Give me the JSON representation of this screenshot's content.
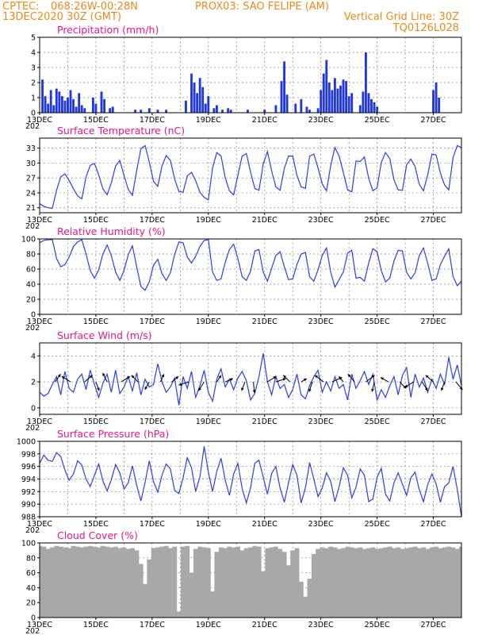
{
  "header": {
    "line1_left": "CPTEC:",
    "coords": "068:26W-00:28N",
    "station": "PROX03: SAO FELIPE (AM)",
    "date": "13DEC2020 30Z (GMT)",
    "grid_note": "Vertical Grid Line: 30Z",
    "code": "TQ0126L028"
  },
  "x_ticks": [
    "13DEC",
    "15DEC",
    "17DEC",
    "19DEC",
    "21DEC",
    "23DEC",
    "25DEC",
    "27DEC"
  ],
  "x_tick_days": [
    13,
    15,
    17,
    19,
    21,
    23,
    25,
    27
  ],
  "x_range": [
    13,
    28
  ],
  "x_year_fragment": "202",
  "colors": {
    "series": "#2a3ee8",
    "bars": "#1f36e0",
    "cloud": "#a8a8a8",
    "titles": "#e8168c",
    "header": "#e88a1e"
  },
  "chart_data": [
    {
      "type": "bar",
      "title": "Precipitation (mm/h)",
      "ylim": [
        0,
        5
      ],
      "yticks": [
        0,
        1,
        2,
        3,
        4,
        5
      ],
      "x": [
        13.1,
        13.2,
        13.3,
        13.4,
        13.5,
        13.6,
        13.7,
        13.8,
        13.9,
        14.0,
        14.1,
        14.2,
        14.3,
        14.4,
        14.5,
        14.6,
        14.9,
        15.0,
        15.2,
        15.3,
        15.5,
        15.6,
        16.4,
        16.6,
        16.9,
        17.2,
        17.5,
        18.2,
        18.4,
        18.5,
        18.6,
        18.7,
        18.8,
        18.9,
        19.0,
        19.2,
        19.3,
        19.5,
        19.7,
        19.8,
        20.4,
        21.0,
        21.4,
        21.6,
        21.7,
        21.8,
        22.1,
        22.3,
        22.5,
        22.6,
        22.9,
        23.0,
        23.1,
        23.2,
        23.3,
        23.4,
        23.5,
        23.6,
        23.7,
        23.8,
        23.9,
        24.0,
        24.1,
        24.4,
        24.5,
        24.6,
        24.7,
        24.8,
        24.9,
        25.0,
        27.0,
        27.1,
        27.2
      ],
      "values": [
        2.2,
        1.1,
        0.6,
        1.5,
        0.5,
        1.6,
        1.4,
        1.1,
        0.8,
        1.0,
        1.5,
        0.9,
        0.4,
        1.3,
        0.5,
        0.3,
        1.0,
        0.6,
        1.4,
        0.9,
        0.3,
        0.4,
        0.2,
        0.2,
        0.3,
        0.2,
        0.2,
        0.8,
        2.6,
        2.0,
        1.3,
        2.3,
        1.7,
        0.6,
        1.1,
        0.3,
        0.5,
        0.2,
        0.3,
        0.2,
        0.2,
        0.2,
        0.5,
        2.1,
        3.4,
        1.2,
        0.6,
        0.9,
        0.4,
        0.2,
        0.3,
        1.5,
        2.6,
        3.5,
        2.0,
        1.5,
        2.3,
        1.6,
        1.8,
        2.2,
        2.1,
        1.1,
        1.3,
        0.5,
        1.4,
        4.0,
        1.3,
        0.9,
        0.7,
        0.4,
        1.5,
        2.0,
        1.0
      ]
    },
    {
      "type": "line",
      "title": "Surface Temperature (nC)",
      "ylim": [
        20,
        35
      ],
      "yticks": [
        21,
        24,
        27,
        30,
        33
      ],
      "x": [
        13.0,
        13.15,
        13.3,
        13.45,
        13.6,
        13.75,
        13.9,
        14.05,
        14.2,
        14.35,
        14.5,
        14.65,
        14.8,
        14.95,
        15.1,
        15.25,
        15.4,
        15.55,
        15.7,
        15.85,
        16.0,
        16.15,
        16.3,
        16.45,
        16.6,
        16.75,
        16.9,
        17.05,
        17.2,
        17.35,
        17.5,
        17.65,
        17.8,
        17.95,
        18.1,
        18.25,
        18.4,
        18.55,
        18.7,
        18.85,
        19.0,
        19.15,
        19.3,
        19.45,
        19.6,
        19.75,
        19.9,
        20.05,
        20.2,
        20.35,
        20.5,
        20.65,
        20.8,
        20.95,
        21.1,
        21.25,
        21.4,
        21.55,
        21.7,
        21.85,
        22.0,
        22.15,
        22.3,
        22.45,
        22.6,
        22.75,
        22.9,
        23.05,
        23.2,
        23.35,
        23.5,
        23.65,
        23.8,
        23.95,
        24.1,
        24.25,
        24.4,
        24.55,
        24.7,
        24.85,
        25.0,
        25.15,
        25.3,
        25.45,
        25.6,
        25.75,
        25.9,
        26.05,
        26.2,
        26.35,
        26.5,
        26.65,
        26.8,
        26.95,
        27.1,
        27.25,
        27.4,
        27.55,
        27.7,
        27.85,
        28.0
      ],
      "values": [
        21.8,
        21.3,
        21.0,
        20.9,
        24.5,
        27.2,
        27.8,
        26.5,
        24.8,
        23.4,
        22.8,
        27.2,
        29.5,
        29.9,
        27.6,
        24.8,
        23.6,
        26.0,
        29.4,
        30.5,
        27.5,
        24.7,
        23.5,
        28.5,
        32.9,
        33.5,
        30.2,
        26.3,
        25.3,
        29.4,
        31.5,
        30.5,
        26.8,
        24.3,
        24.1,
        27.4,
        28.1,
        26.4,
        24.1,
        23.1,
        22.6,
        29.0,
        32.1,
        31.4,
        27.0,
        24.4,
        23.6,
        27.5,
        31.4,
        31.9,
        28.2,
        24.9,
        24.5,
        29.8,
        32.3,
        28.4,
        25.2,
        24.5,
        28.9,
        31.4,
        31.4,
        27.5,
        25.2,
        24.9,
        31.4,
        31.8,
        29.0,
        25.8,
        24.4,
        29.5,
        33.1,
        31.4,
        28.1,
        24.6,
        24.2,
        30.4,
        30.3,
        31.2,
        26.9,
        24.4,
        25.0,
        30.1,
        32.1,
        30.9,
        26.6,
        24.6,
        24.5,
        29.6,
        30.8,
        29.3,
        25.7,
        24.4,
        27.6,
        31.8,
        31.6,
        28.0,
        25.6,
        24.6,
        31.1,
        33.5,
        33.1
      ]
    },
    {
      "type": "line",
      "title": "Relative Humidity (%)",
      "ylim": [
        0,
        100
      ],
      "yticks": [
        0,
        20,
        40,
        60,
        80,
        100
      ],
      "x": [
        13.0,
        13.15,
        13.3,
        13.45,
        13.6,
        13.75,
        13.9,
        14.05,
        14.2,
        14.35,
        14.5,
        14.65,
        14.8,
        14.95,
        15.1,
        15.25,
        15.4,
        15.55,
        15.7,
        15.85,
        16.0,
        16.15,
        16.3,
        16.45,
        16.6,
        16.75,
        16.9,
        17.05,
        17.2,
        17.35,
        17.5,
        17.65,
        17.8,
        17.95,
        18.1,
        18.25,
        18.4,
        18.55,
        18.7,
        18.85,
        19.0,
        19.15,
        19.3,
        19.45,
        19.6,
        19.75,
        19.9,
        20.05,
        20.2,
        20.35,
        20.5,
        20.65,
        20.8,
        20.95,
        21.1,
        21.25,
        21.4,
        21.55,
        21.7,
        21.85,
        22.0,
        22.15,
        22.3,
        22.45,
        22.6,
        22.75,
        22.9,
        23.05,
        23.2,
        23.35,
        23.5,
        23.65,
        23.8,
        23.95,
        24.1,
        24.25,
        24.4,
        24.55,
        24.7,
        24.85,
        25.0,
        25.15,
        25.3,
        25.45,
        25.6,
        25.75,
        25.9,
        26.05,
        26.2,
        26.35,
        26.5,
        26.65,
        26.8,
        26.95,
        27.1,
        27.25,
        27.4,
        27.55,
        27.7,
        27.85,
        28.0
      ],
      "values": [
        95,
        98,
        99,
        99,
        74,
        63,
        66,
        76,
        90,
        96,
        99,
        80,
        58,
        48,
        59,
        80,
        92,
        78,
        56,
        45,
        58,
        79,
        91,
        63,
        37,
        32,
        43,
        65,
        73,
        54,
        45,
        55,
        79,
        96,
        95,
        76,
        68,
        77,
        90,
        98,
        99,
        56,
        45,
        47,
        69,
        86,
        93,
        74,
        50,
        45,
        57,
        84,
        86,
        56,
        44,
        61,
        78,
        83,
        63,
        46,
        47,
        66,
        80,
        82,
        50,
        44,
        59,
        78,
        88,
        56,
        36,
        46,
        56,
        81,
        85,
        48,
        49,
        44,
        68,
        87,
        83,
        58,
        43,
        48,
        71,
        85,
        84,
        56,
        47,
        55,
        78,
        88,
        68,
        45,
        47,
        66,
        77,
        87,
        50,
        38,
        44
      ]
    },
    {
      "type": "line",
      "title": "Surface Wind (m/s)",
      "ylim": [
        -0.5,
        5
      ],
      "yticks": [
        0,
        2,
        4
      ],
      "x": [
        13.0,
        13.15,
        13.3,
        13.45,
        13.6,
        13.75,
        13.9,
        14.05,
        14.2,
        14.35,
        14.5,
        14.65,
        14.8,
        14.95,
        15.1,
        15.25,
        15.4,
        15.55,
        15.7,
        15.85,
        16.0,
        16.15,
        16.3,
        16.45,
        16.6,
        16.75,
        16.9,
        17.05,
        17.2,
        17.35,
        17.5,
        17.65,
        17.8,
        17.95,
        18.1,
        18.25,
        18.4,
        18.55,
        18.7,
        18.85,
        19.0,
        19.15,
        19.3,
        19.45,
        19.6,
        19.75,
        19.9,
        20.05,
        20.2,
        20.35,
        20.5,
        20.65,
        20.8,
        20.95,
        21.1,
        21.25,
        21.4,
        21.55,
        21.7,
        21.85,
        22.0,
        22.15,
        22.3,
        22.45,
        22.6,
        22.75,
        22.9,
        23.05,
        23.2,
        23.35,
        23.5,
        23.65,
        23.8,
        23.95,
        24.1,
        24.25,
        24.4,
        24.55,
        24.7,
        24.85,
        25.0,
        25.15,
        25.3,
        25.45,
        25.6,
        25.75,
        25.9,
        26.05,
        26.2,
        26.35,
        26.5,
        26.65,
        26.8,
        26.95,
        27.1,
        27.25,
        27.4,
        27.55,
        27.7,
        27.85,
        28.0
      ],
      "values": [
        1.2,
        0.9,
        1.1,
        1.8,
        2.4,
        1.0,
        2.8,
        1.5,
        1.2,
        2.2,
        2.6,
        1.4,
        2.9,
        1.8,
        0.8,
        1.9,
        2.6,
        1.2,
        2.9,
        1.1,
        1.6,
        2.4,
        1.3,
        2.7,
        1.0,
        2.2,
        1.6,
        1.8,
        3.4,
        2.0,
        1.2,
        1.6,
        2.3,
        0.2,
        2.4,
        1.5,
        2.8,
        0.8,
        1.7,
        2.9,
        1.2,
        0.5,
        2.2,
        3.0,
        1.6,
        2.2,
        1.4,
        2.3,
        2.8,
        2.1,
        0.6,
        1.1,
        2.4,
        4.2,
        2.0,
        1.0,
        2.4,
        1.5,
        1.8,
        0.8,
        1.4,
        2.6,
        1.0,
        0.7,
        1.7,
        2.4,
        2.9,
        1.2,
        2.0,
        1.3,
        2.4,
        1.5,
        1.8,
        0.6,
        2.6,
        1.5,
        2.1,
        2.8,
        1.8,
        2.6,
        0.6,
        1.4,
        0.8,
        1.7,
        2.4,
        1.0,
        2.5,
        3.1,
        0.8,
        2.6,
        1.6,
        2.3,
        1.2,
        2.2,
        1.5,
        2.6,
        1.8,
        3.9,
        2.2,
        3.3,
        1.7
      ],
      "vectors": {
        "x": [
          13.55,
          14.1,
          14.6,
          15.0,
          15.4,
          15.9,
          16.5,
          16.9,
          17.3,
          17.7,
          18.3,
          18.85,
          19.3,
          19.6,
          20.3,
          20.6,
          21.1,
          21.4,
          21.9,
          22.3,
          22.7,
          23.1,
          23.4,
          23.8,
          24.2,
          24.6,
          24.9,
          25.4,
          25.8,
          26.3,
          26.6,
          27.0,
          27.4,
          27.8
        ],
        "u": [
          0.5,
          -0.8,
          0.7,
          0.3,
          -0.4,
          0.8,
          -0.6,
          -0.4,
          0.3,
          0.6,
          -0.9,
          -0.5,
          0.4,
          0.7,
          -0.3,
          0.1,
          0.8,
          0.9,
          -0.6,
          0.5,
          -0.3,
          -0.8,
          0.9,
          -0.4,
          -0.6,
          0.8,
          -0.2,
          -0.7,
          0.6,
          -0.8,
          0.5,
          -0.7,
          -0.3,
          0.6
        ],
        "v": [
          0.7,
          0.5,
          0.6,
          -0.8,
          0.8,
          0.5,
          0.6,
          -0.7,
          0.7,
          0.5,
          -0.3,
          -0.8,
          0.6,
          0.3,
          -0.8,
          -1.0,
          0.5,
          0.3,
          0.6,
          0.3,
          -0.9,
          0.6,
          0.4,
          0.5,
          0.7,
          0.6,
          -0.9,
          0.4,
          -0.6,
          -0.5,
          -0.8,
          0.6,
          -0.8,
          -0.7
        ]
      }
    },
    {
      "type": "line",
      "title": "Surface Pressure (hPa)",
      "ylim": [
        988,
        1000
      ],
      "yticks": [
        988,
        990,
        992,
        994,
        996,
        998,
        1000
      ],
      "x": [
        13.0,
        13.15,
        13.3,
        13.45,
        13.6,
        13.75,
        13.9,
        14.05,
        14.2,
        14.35,
        14.5,
        14.65,
        14.8,
        14.95,
        15.1,
        15.25,
        15.4,
        15.55,
        15.7,
        15.85,
        16.0,
        16.15,
        16.3,
        16.45,
        16.6,
        16.75,
        16.9,
        17.05,
        17.2,
        17.35,
        17.5,
        17.65,
        17.8,
        17.95,
        18.1,
        18.25,
        18.4,
        18.55,
        18.7,
        18.85,
        19.0,
        19.15,
        19.3,
        19.45,
        19.6,
        19.75,
        19.9,
        20.05,
        20.2,
        20.35,
        20.5,
        20.65,
        20.8,
        20.95,
        21.1,
        21.25,
        21.4,
        21.55,
        21.7,
        21.85,
        22.0,
        22.15,
        22.3,
        22.45,
        22.6,
        22.75,
        22.9,
        23.05,
        23.2,
        23.35,
        23.5,
        23.65,
        23.8,
        23.95,
        24.1,
        24.25,
        24.4,
        24.55,
        24.7,
        24.85,
        25.0,
        25.15,
        25.3,
        25.45,
        25.6,
        25.75,
        25.9,
        26.05,
        26.2,
        26.35,
        26.5,
        26.65,
        26.8,
        26.95,
        27.1,
        27.25,
        27.4,
        27.55,
        27.7,
        27.85,
        28.0
      ],
      "values": [
        996.5,
        997.8,
        997.0,
        996.8,
        998.2,
        997.6,
        995.4,
        993.8,
        994.8,
        996.9,
        996.2,
        994.0,
        992.8,
        994.6,
        996.4,
        993.7,
        992.1,
        993.9,
        996.3,
        995.0,
        992.4,
        993.4,
        996.1,
        993.0,
        990.5,
        993.5,
        996.9,
        993.6,
        991.9,
        994.6,
        996.4,
        995.6,
        992.2,
        991.7,
        994.2,
        997.4,
        995.8,
        992.0,
        994.4,
        999.2,
        995.1,
        992.0,
        995.2,
        997.3,
        993.8,
        991.4,
        994.8,
        996.5,
        992.5,
        990.2,
        992.6,
        996.5,
        997.0,
        994.3,
        991.6,
        994.9,
        996.0,
        992.6,
        990.3,
        993.4,
        996.3,
        994.6,
        990.2,
        992.6,
        996.6,
        994.0,
        991.2,
        992.6,
        995.0,
        993.6,
        990.4,
        992.8,
        995.8,
        994.6,
        991.0,
        992.7,
        995.6,
        994.6,
        990.4,
        990.8,
        994.3,
        995.7,
        991.6,
        990.5,
        993.4,
        995.0,
        993.2,
        991.4,
        994.2,
        995.1,
        992.3,
        990.4,
        993.1,
        994.8,
        993.2,
        990.3,
        992.8,
        993.4,
        996.0,
        992.4,
        988.0
      ]
    },
    {
      "type": "area",
      "title": "Cloud Cover (%)",
      "ylim": [
        0,
        100
      ],
      "yticks": [
        0,
        20,
        40,
        60,
        80,
        100
      ],
      "x": [
        13.0,
        13.15,
        13.3,
        13.45,
        13.6,
        13.75,
        13.9,
        14.05,
        14.2,
        14.35,
        14.5,
        14.65,
        14.8,
        14.95,
        15.1,
        15.25,
        15.4,
        15.55,
        15.7,
        15.85,
        16.0,
        16.15,
        16.3,
        16.45,
        16.6,
        16.75,
        16.9,
        17.05,
        17.2,
        17.35,
        17.5,
        17.65,
        17.8,
        17.95,
        18.1,
        18.25,
        18.4,
        18.55,
        18.7,
        18.85,
        19.0,
        19.15,
        19.3,
        19.45,
        19.6,
        19.75,
        19.9,
        20.05,
        20.2,
        20.35,
        20.5,
        20.65,
        20.8,
        20.95,
        21.1,
        21.25,
        21.4,
        21.55,
        21.7,
        21.85,
        22.0,
        22.15,
        22.3,
        22.45,
        22.6,
        22.75,
        22.9,
        23.05,
        23.2,
        23.35,
        23.5,
        23.65,
        23.8,
        23.95,
        24.1,
        24.25,
        24.4,
        24.55,
        24.7,
        24.85,
        25.0,
        25.15,
        25.3,
        25.45,
        25.6,
        25.75,
        25.9,
        26.05,
        26.2,
        26.35,
        26.5,
        26.65,
        26.8,
        26.95,
        27.1,
        27.25,
        27.4,
        27.55,
        27.7,
        27.85,
        28.0
      ],
      "values": [
        96,
        95,
        92,
        94,
        96,
        95,
        94,
        93,
        96,
        95,
        94,
        95,
        96,
        95,
        94,
        96,
        95,
        94,
        95,
        93,
        94,
        92,
        93,
        90,
        72,
        45,
        78,
        93,
        94,
        95,
        96,
        93,
        95,
        8,
        95,
        96,
        60,
        92,
        95,
        94,
        93,
        35,
        88,
        94,
        93,
        95,
        94,
        95,
        90,
        93,
        94,
        96,
        95,
        62,
        93,
        94,
        95,
        92,
        88,
        70,
        90,
        93,
        48,
        28,
        52,
        85,
        92,
        94,
        93,
        95,
        94,
        92,
        93,
        95,
        94,
        93,
        94,
        92,
        93,
        94,
        92,
        93,
        94,
        95,
        93,
        94,
        92,
        93,
        94,
        95,
        93,
        94,
        92,
        94,
        95,
        93,
        94,
        95,
        94,
        92,
        95
      ]
    }
  ]
}
